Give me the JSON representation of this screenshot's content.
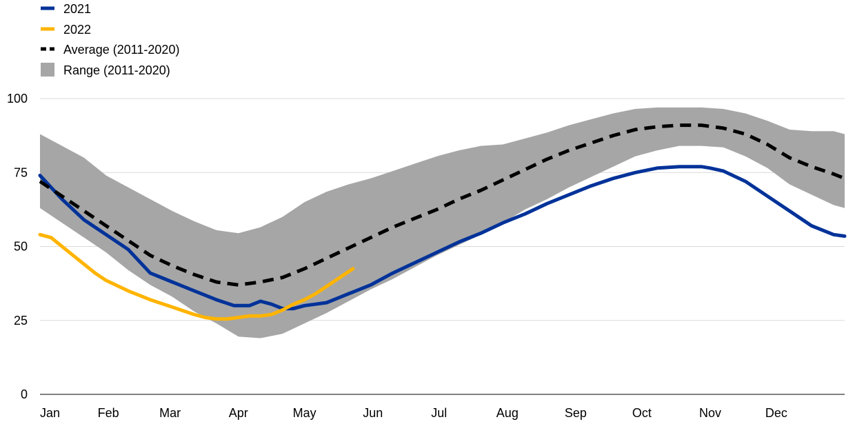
{
  "chart_data": {
    "type": "line",
    "title": "",
    "xlabel": "",
    "ylabel": "",
    "ylim": [
      0,
      100
    ],
    "yticks": [
      0,
      25,
      50,
      75,
      100
    ],
    "xlim": [
      0,
      365
    ],
    "month_labels": [
      "Jan",
      "Feb",
      "Mar",
      "Apr",
      "May",
      "Jun",
      "Jul",
      "Aug",
      "Sep",
      "Oct",
      "Nov",
      "Dec"
    ],
    "month_start_days": [
      0,
      31,
      59,
      90,
      120,
      151,
      181,
      212,
      243,
      273,
      304,
      334
    ],
    "grid": "horizontal",
    "legend_position": "top-left",
    "colors": {
      "2021": "#003299",
      "2022": "#FFB400",
      "average": "#000000",
      "range": "#A6A6A6"
    },
    "series": [
      {
        "name": "2021",
        "kind": "line",
        "x": [
          0,
          10,
          20,
          30,
          40,
          50,
          60,
          70,
          80,
          88,
          95,
          100,
          105,
          110,
          115,
          120,
          125,
          130,
          135,
          140,
          150,
          160,
          170,
          180,
          190,
          200,
          210,
          220,
          230,
          240,
          250,
          260,
          270,
          280,
          290,
          300,
          304,
          310,
          320,
          330,
          340,
          350,
          360,
          365
        ],
        "values": [
          74,
          66,
          59,
          54,
          49,
          41,
          38,
          35,
          32,
          30,
          30,
          31.5,
          30.5,
          29,
          29,
          30,
          30.5,
          31,
          32.5,
          34,
          37,
          41,
          44.5,
          48,
          51.5,
          54.5,
          58,
          61,
          64.5,
          67.5,
          70.5,
          73,
          75,
          76.5,
          77,
          77,
          76.5,
          75.5,
          72,
          67,
          62,
          57,
          54,
          53.5
        ]
      },
      {
        "name": "2022",
        "kind": "line",
        "x": [
          0,
          5,
          10,
          15,
          20,
          25,
          30,
          40,
          50,
          60,
          70,
          75,
          80,
          85,
          90,
          95,
          100,
          105,
          110,
          115,
          120,
          125,
          130,
          135,
          140,
          142
        ],
        "values": [
          54,
          53,
          50,
          47,
          44,
          41,
          38.5,
          35,
          32,
          29.5,
          27,
          26,
          25.5,
          25.5,
          26,
          26.5,
          26.5,
          27,
          28.5,
          30.5,
          32,
          34,
          36.5,
          39,
          41.5,
          42.5
        ]
      },
      {
        "name": "Average (2011-2020)",
        "kind": "dashed-line",
        "x": [
          0,
          10,
          20,
          30,
          40,
          50,
          60,
          70,
          80,
          90,
          100,
          110,
          120,
          130,
          140,
          150,
          160,
          170,
          180,
          190,
          200,
          210,
          220,
          230,
          240,
          250,
          260,
          270,
          280,
          290,
          300,
          310,
          320,
          330,
          340,
          350,
          360,
          365
        ],
        "values": [
          72,
          67,
          62,
          57,
          52,
          47,
          43.5,
          40.5,
          38,
          37,
          38,
          39.5,
          42.5,
          46,
          49.5,
          53,
          56.5,
          59.5,
          62.5,
          66,
          69,
          72.5,
          76,
          79.5,
          82.5,
          85,
          87.5,
          89.5,
          90.5,
          91,
          91,
          90,
          88,
          84.5,
          80,
          77,
          74.5,
          73
        ]
      },
      {
        "name": "Range (2011-2020)",
        "kind": "band",
        "x": [
          0,
          10,
          20,
          30,
          40,
          50,
          60,
          70,
          80,
          90,
          100,
          110,
          120,
          130,
          140,
          150,
          160,
          170,
          180,
          190,
          200,
          210,
          220,
          230,
          240,
          250,
          260,
          270,
          280,
          290,
          300,
          310,
          320,
          330,
          340,
          350,
          360,
          365
        ],
        "low": [
          63,
          58,
          53,
          48,
          42,
          37,
          33,
          28,
          24,
          19.5,
          19,
          20.5,
          24,
          27.5,
          31.5,
          35.5,
          39,
          43,
          47,
          50.5,
          54,
          58,
          62.5,
          66,
          70,
          73.5,
          77,
          80.5,
          82.5,
          84,
          84,
          83.5,
          80.5,
          76.5,
          71,
          67.5,
          64,
          63
        ],
        "high": [
          88,
          84,
          80,
          74,
          70,
          66,
          62,
          58.5,
          55.5,
          54.5,
          56.5,
          60,
          65,
          68.5,
          71,
          73,
          75.5,
          78,
          80.5,
          82.5,
          84,
          84.5,
          86.5,
          88.5,
          91,
          93,
          95,
          96.5,
          97,
          97,
          97,
          96.5,
          95,
          92.5,
          89.5,
          89,
          89,
          88
        ]
      }
    ]
  }
}
